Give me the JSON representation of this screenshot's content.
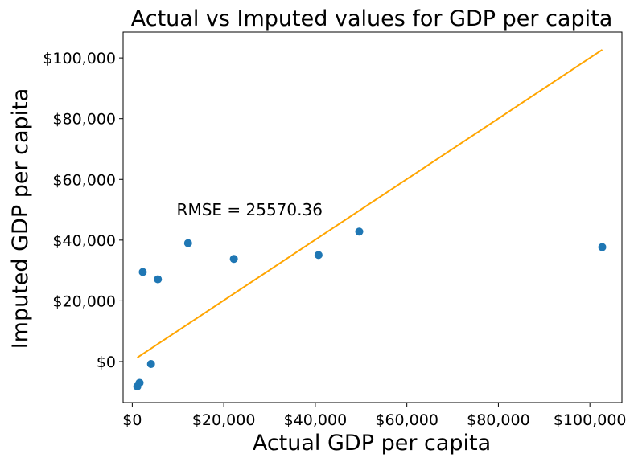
{
  "chart_data": {
    "type": "scatter",
    "title": "Actual vs Imputed values for GDP per capita",
    "xlabel": "Actual GDP per capita",
    "ylabel": "Imputed GDP per capita",
    "xlim": [
      -2000,
      107000
    ],
    "ylim": [
      -13500,
      108500
    ],
    "x_ticks": [
      {
        "value": 0,
        "label": "$0"
      },
      {
        "value": 20000,
        "label": "$20,000"
      },
      {
        "value": 40000,
        "label": "$40,000"
      },
      {
        "value": 60000,
        "label": "$60,000"
      },
      {
        "value": 80000,
        "label": "$80,000"
      },
      {
        "value": 100000,
        "label": "$100,000"
      }
    ],
    "y_ticks": [
      {
        "value": 0,
        "label": "$0"
      },
      {
        "value": 20000,
        "label": "$20,000"
      },
      {
        "value": 40000,
        "label": "$40,000"
      },
      {
        "value": 60000,
        "label": "$60,000"
      },
      {
        "value": 80000,
        "label": "$80,000"
      },
      {
        "value": 100000,
        "label": "$100,000"
      }
    ],
    "series": [
      {
        "type": "scatter",
        "color": "#1f77b4",
        "points": [
          {
            "x": 1100,
            "y": -8200
          },
          {
            "x": 1600,
            "y": -7000
          },
          {
            "x": 2300,
            "y": 29500
          },
          {
            "x": 4100,
            "y": -800
          },
          {
            "x": 5600,
            "y": 27100
          },
          {
            "x": 12200,
            "y": 39000
          },
          {
            "x": 22200,
            "y": 33800
          },
          {
            "x": 40700,
            "y": 35100
          },
          {
            "x": 49600,
            "y": 42800
          },
          {
            "x": 102700,
            "y": 37700
          }
        ]
      },
      {
        "type": "line",
        "color": "#ffa500",
        "points": [
          {
            "x": 1100,
            "y": 1300
          },
          {
            "x": 102700,
            "y": 102700
          }
        ]
      }
    ],
    "annotations": [
      {
        "text": "RMSE = 25570.36",
        "x": 9700,
        "y": 50000
      }
    ],
    "grid": false,
    "legend": null
  }
}
